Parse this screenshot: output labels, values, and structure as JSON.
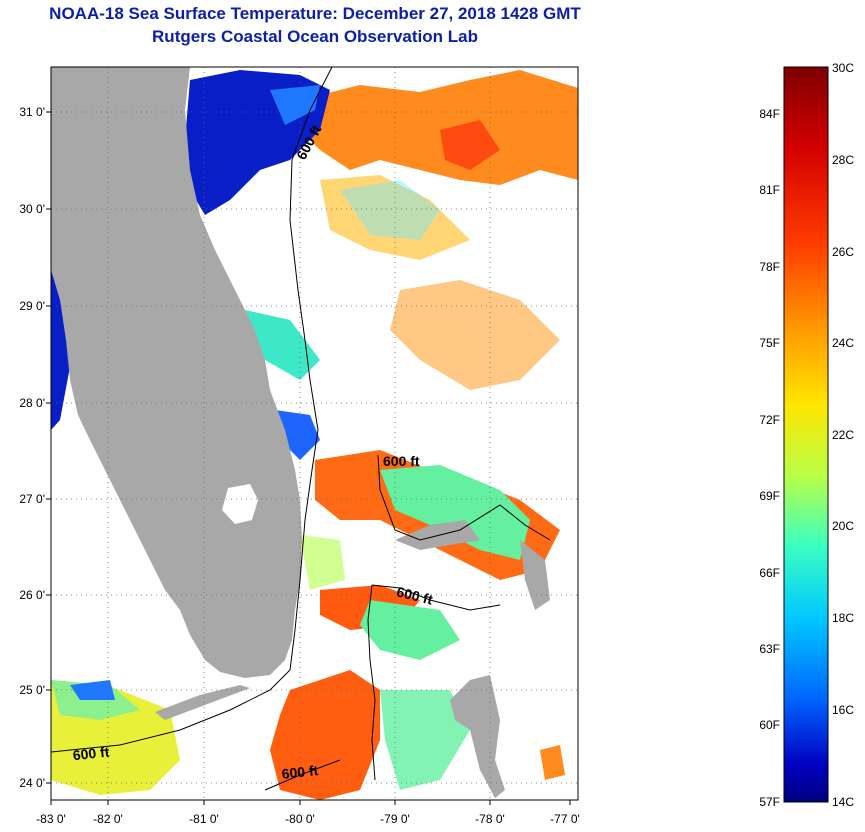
{
  "header": {
    "title": "NOAA-18 Sea Surface Temperature:  December 27, 2018 1428 GMT",
    "subtitle": "Rutgers Coastal Ocean Observation Lab"
  },
  "axes": {
    "lat_labels": [
      "31 0'",
      "30 0'",
      "29 0'",
      "28 0'",
      "27 0'",
      "26 0'",
      "25 0'",
      "24 0'"
    ],
    "lon_labels": [
      "-83 0'",
      "-82 0'",
      "-81 0'",
      "-80 0'",
      "-79 0'",
      "-78 0'",
      "-77 0'"
    ]
  },
  "contours": {
    "depth_label": "600 ft",
    "label_count": 5
  },
  "colorbar": {
    "celsius_labels": [
      "30C",
      "28C",
      "26C",
      "24C",
      "22C",
      "20C",
      "18C",
      "16C",
      "14C"
    ],
    "fahrenheit_labels": [
      "84F",
      "81F",
      "78F",
      "75F",
      "72F",
      "69F",
      "66F",
      "63F",
      "60F",
      "57F"
    ],
    "colors": [
      "#7f0000",
      "#d40000",
      "#ff3c00",
      "#ff9c00",
      "#ffe600",
      "#b4ff4a",
      "#3cffc0",
      "#00c8ff",
      "#0066ff",
      "#0000c0",
      "#00007f"
    ]
  },
  "colors": {
    "land": "#a8a8a8",
    "title_color": "#0b1fa8"
  }
}
